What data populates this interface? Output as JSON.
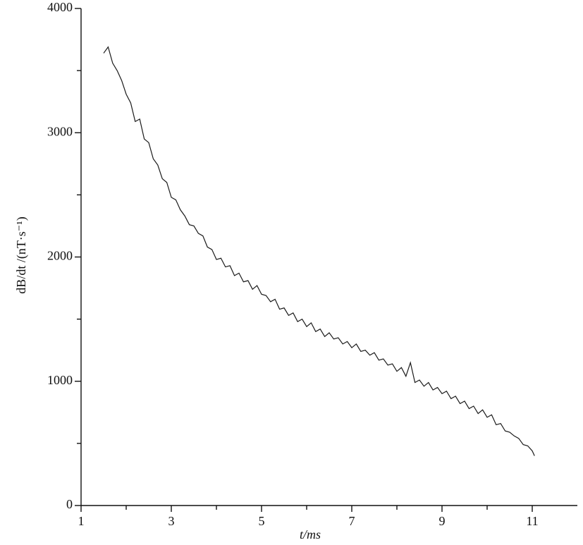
{
  "chart_data": {
    "type": "line",
    "xlabel": "t/ms",
    "ylabel": "dB/dt /(nT·s⁻¹)",
    "x": [
      1.5,
      1.6,
      1.7,
      1.8,
      1.9,
      2.0,
      2.1,
      2.2,
      2.3,
      2.4,
      2.5,
      2.6,
      2.7,
      2.8,
      2.9,
      3.0,
      3.1,
      3.2,
      3.3,
      3.4,
      3.5,
      3.6,
      3.7,
      3.8,
      3.9,
      4.0,
      4.1,
      4.2,
      4.3,
      4.4,
      4.5,
      4.6,
      4.7,
      4.8,
      4.9,
      5.0,
      5.1,
      5.2,
      5.3,
      5.4,
      5.5,
      5.6,
      5.7,
      5.8,
      5.9,
      6.0,
      6.1,
      6.2,
      6.3,
      6.4,
      6.5,
      6.6,
      6.7,
      6.8,
      6.9,
      7.0,
      7.1,
      7.2,
      7.3,
      7.4,
      7.5,
      7.6,
      7.7,
      7.8,
      7.9,
      8.0,
      8.1,
      8.2,
      8.3,
      8.4,
      8.5,
      8.6,
      8.7,
      8.8,
      8.9,
      9.0,
      9.1,
      9.2,
      9.3,
      9.4,
      9.5,
      9.6,
      9.7,
      9.8,
      9.9,
      10.0,
      10.1,
      10.2,
      10.3,
      10.4,
      10.5,
      10.6,
      10.7,
      10.8,
      10.9,
      11.0,
      11.05
    ],
    "series": [
      {
        "color": "#1a1a1a",
        "values": [
          3640,
          3690,
          3560,
          3500,
          3420,
          3310,
          3240,
          3090,
          3110,
          2950,
          2920,
          2790,
          2740,
          2630,
          2600,
          2480,
          2460,
          2380,
          2330,
          2260,
          2250,
          2190,
          2170,
          2080,
          2060,
          1980,
          1990,
          1920,
          1930,
          1850,
          1870,
          1800,
          1810,
          1740,
          1770,
          1700,
          1690,
          1640,
          1660,
          1580,
          1590,
          1530,
          1550,
          1480,
          1500,
          1440,
          1470,
          1400,
          1420,
          1360,
          1390,
          1340,
          1350,
          1300,
          1320,
          1270,
          1300,
          1240,
          1250,
          1210,
          1230,
          1170,
          1180,
          1130,
          1140,
          1080,
          1110,
          1040,
          1150,
          990,
          1010,
          960,
          990,
          930,
          950,
          900,
          920,
          860,
          880,
          820,
          840,
          780,
          800,
          740,
          770,
          710,
          730,
          650,
          660,
          600,
          590,
          560,
          540,
          490,
          480,
          440,
          400
        ]
      }
    ],
    "xlim": [
      1,
      12
    ],
    "ylim": [
      0,
      4000
    ],
    "xticks": [
      1,
      3,
      5,
      7,
      9,
      11
    ],
    "yticks": [
      0,
      1000,
      2000,
      3000,
      4000
    ],
    "xminorticks": [
      2,
      4,
      6,
      8,
      10
    ],
    "yminorticks": [
      500,
      1500,
      2500,
      3500
    ]
  }
}
